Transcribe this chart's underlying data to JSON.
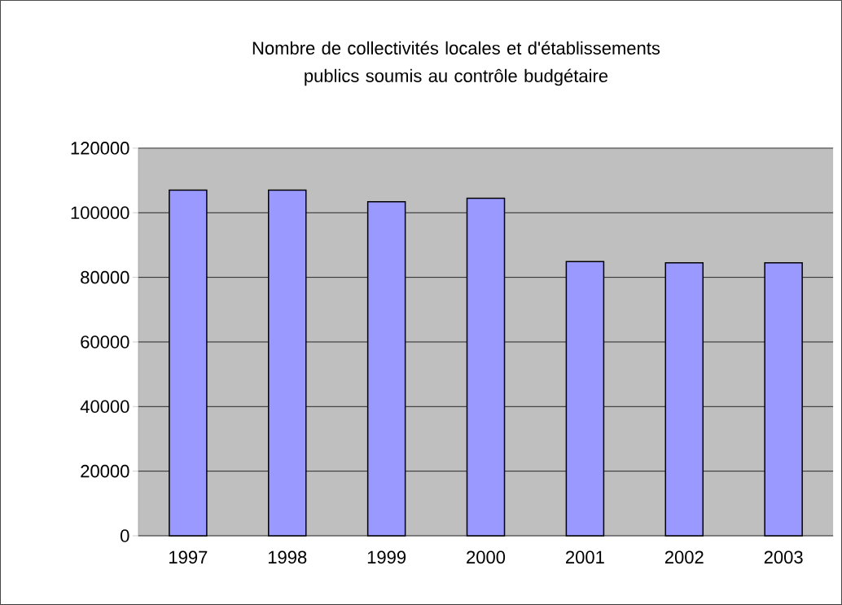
{
  "chart_data": {
    "type": "bar",
    "title": "Nombre de collectivités locales et d'établissements publics soumis au contrôle budgétaire",
    "categories": [
      "1997",
      "1998",
      "1999",
      "2000",
      "2001",
      "2002",
      "2003"
    ],
    "values": [
      107000,
      107000,
      103400,
      104500,
      84900,
      84500,
      84500
    ],
    "color": "#9999ff",
    "ylim": [
      0,
      120000
    ],
    "yticks": [
      0,
      20000,
      40000,
      60000,
      80000,
      100000,
      120000
    ],
    "grid": "y"
  }
}
